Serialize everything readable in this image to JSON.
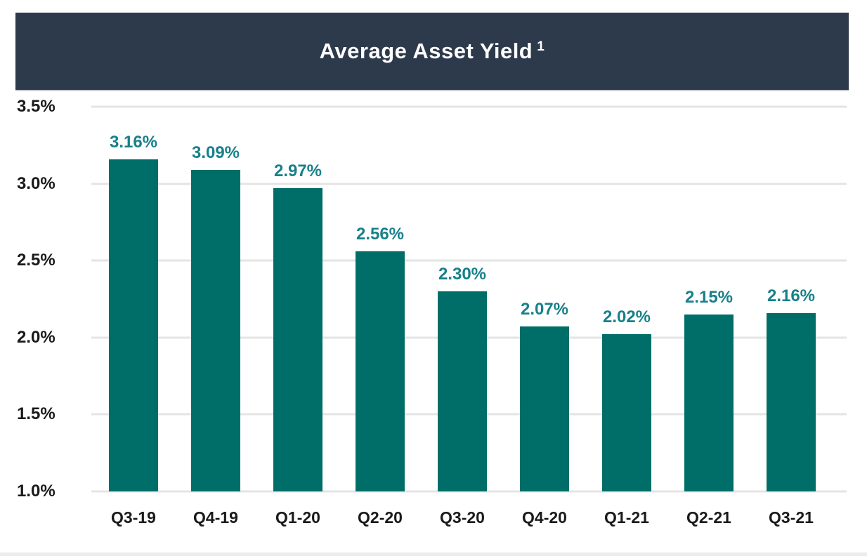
{
  "header": {
    "title": "Average Asset Yield",
    "footnote_marker": "1"
  },
  "chart_data": {
    "type": "bar",
    "title": "Average Asset Yield",
    "title_superscript": "1",
    "categories": [
      "Q3-19",
      "Q4-19",
      "Q1-20",
      "Q2-20",
      "Q3-20",
      "Q4-20",
      "Q1-21",
      "Q2-21",
      "Q3-21"
    ],
    "values": [
      3.16,
      3.09,
      2.97,
      2.56,
      2.3,
      2.07,
      2.02,
      2.15,
      2.16
    ],
    "value_labels": [
      "3.16%",
      "3.09%",
      "2.97%",
      "2.56%",
      "2.30%",
      "2.07%",
      "2.02%",
      "2.15%",
      "2.16%"
    ],
    "yticks": [
      {
        "value": 3.5,
        "label": "3.5%"
      },
      {
        "value": 3.0,
        "label": "3.0%"
      },
      {
        "value": 2.5,
        "label": "2.5%"
      },
      {
        "value": 2.0,
        "label": "2.0%"
      },
      {
        "value": 1.5,
        "label": "1.5%"
      },
      {
        "value": 1.0,
        "label": "1.0%"
      }
    ],
    "ylim": [
      1.0,
      3.5
    ],
    "xlabel": "",
    "ylabel": "",
    "grid": true,
    "legend": false,
    "colors": {
      "bar": "#006e68",
      "value_label": "#17808a",
      "header_bg": "#2d3a4c",
      "header_text": "#ffffff",
      "axis_text": "#1a1a1a",
      "gridline": "#e4e4e4"
    }
  }
}
